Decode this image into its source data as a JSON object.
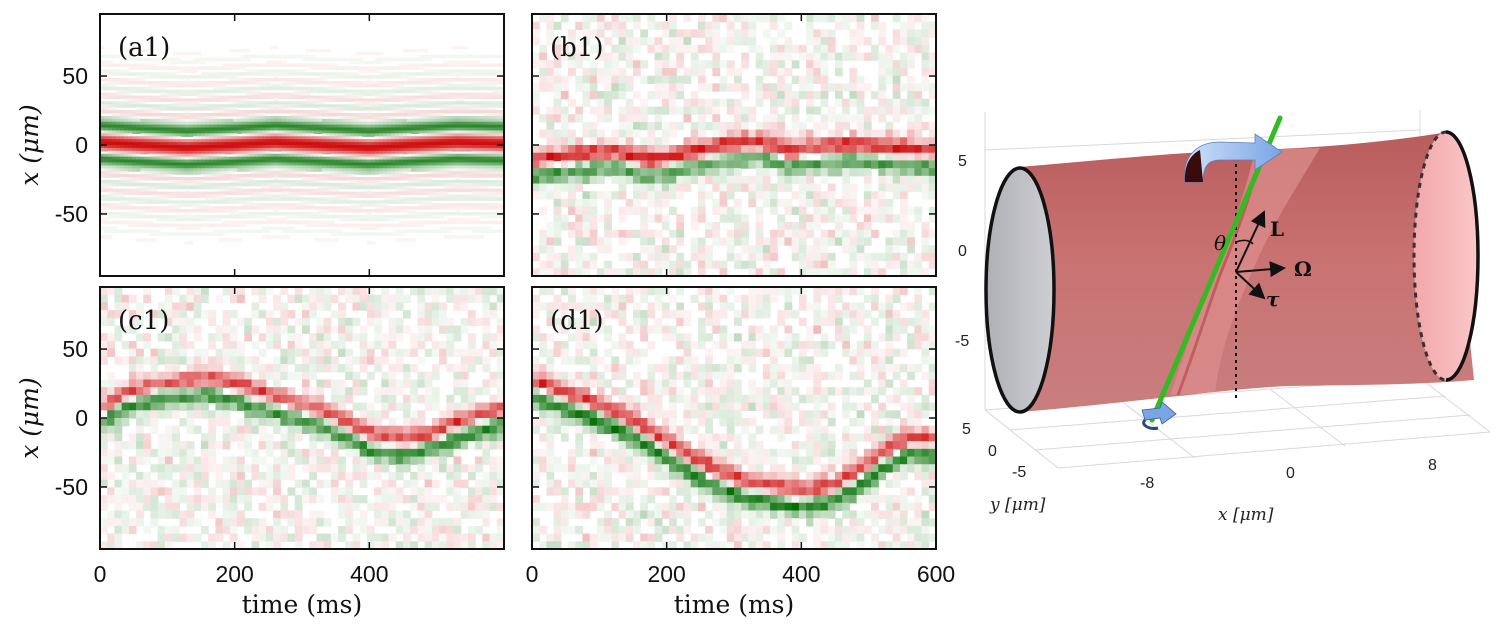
{
  "chart_data": [
    {
      "type": "heatmap",
      "panel": "(a1)",
      "ylabel": "x (μm)",
      "xlabel": "",
      "xlim": [
        0,
        600
      ],
      "ylim": [
        -95,
        95
      ],
      "yticks": [
        "50",
        "0",
        "-50"
      ],
      "xticks": [],
      "colors": {
        "positive": "#d00000",
        "negative": "#007000"
      },
      "center_trajectory": {
        "t": [
          0,
          60,
          130,
          200,
          260,
          330,
          400,
          460,
          530,
          600
        ],
        "x": [
          2,
          0,
          -2,
          0,
          2,
          0,
          -2,
          0,
          2,
          1
        ]
      },
      "texture": "smooth-fringes"
    },
    {
      "type": "heatmap",
      "panel": "(b1)",
      "ylabel": "",
      "xlabel": "",
      "xlim": [
        0,
        600
      ],
      "ylim": [
        -95,
        95
      ],
      "yticks": [],
      "xticks": [],
      "colors": {
        "positive": "#d00000",
        "negative": "#007000"
      },
      "center_trajectory": {
        "t": [
          0,
          60,
          120,
          180,
          240,
          300,
          340,
          380,
          420,
          480,
          540,
          600
        ],
        "x": [
          -12,
          -8,
          -5,
          -12,
          -5,
          0,
          2,
          -5,
          -2,
          0,
          -3,
          -5
        ]
      },
      "texture": "noisy"
    },
    {
      "type": "heatmap",
      "panel": "(c1)",
      "ylabel": "x (μm)",
      "xlabel": "time (ms)",
      "xlim": [
        0,
        600
      ],
      "ylim": [
        -95,
        95
      ],
      "yticks": [
        "50",
        "0",
        "-50"
      ],
      "xticks": [
        "0",
        "200",
        "400"
      ],
      "colors": {
        "positive": "#d00000",
        "negative": "#007000"
      },
      "center_trajectory": {
        "t": [
          0,
          40,
          80,
          120,
          160,
          200,
          240,
          280,
          320,
          360,
          400,
          440,
          480,
          520,
          560,
          600
        ],
        "x": [
          0,
          12,
          18,
          20,
          22,
          18,
          12,
          5,
          0,
          -8,
          -18,
          -22,
          -20,
          -12,
          -5,
          0
        ]
      },
      "texture": "noisy"
    },
    {
      "type": "heatmap",
      "panel": "(d1)",
      "ylabel": "",
      "xlabel": "time (ms)",
      "xlim": [
        0,
        600
      ],
      "ylim": [
        -95,
        95
      ],
      "yticks": [],
      "xticks": [
        "0",
        "200",
        "400",
        "600"
      ],
      "colors": {
        "positive": "#d00000",
        "negative": "#007000"
      },
      "center_trajectory": {
        "t": [
          0,
          40,
          80,
          120,
          160,
          200,
          240,
          280,
          320,
          360,
          400,
          440,
          480,
          520,
          560,
          600
        ],
        "x": [
          22,
          15,
          8,
          0,
          -10,
          -22,
          -35,
          -45,
          -52,
          -55,
          -58,
          -55,
          -45,
          -30,
          -20,
          -20
        ]
      },
      "texture": "noisy"
    }
  ],
  "diagram": {
    "labels": {
      "theta": "θ",
      "L": "L",
      "Omega": "Ω",
      "tau": "τ"
    },
    "axis_y_ticks": [
      "5",
      "0",
      "-5"
    ],
    "axis_y_depth_ticks": [
      "5",
      "0",
      "-5"
    ],
    "axis_x_ticks": [
      "-8",
      "0",
      "8"
    ],
    "xlabel": "x [μm]",
    "ylabel": "y [μm]",
    "colors": {
      "tube": "#c97070",
      "rod": "#33bb22",
      "arrow": "#8fb8ee"
    }
  }
}
